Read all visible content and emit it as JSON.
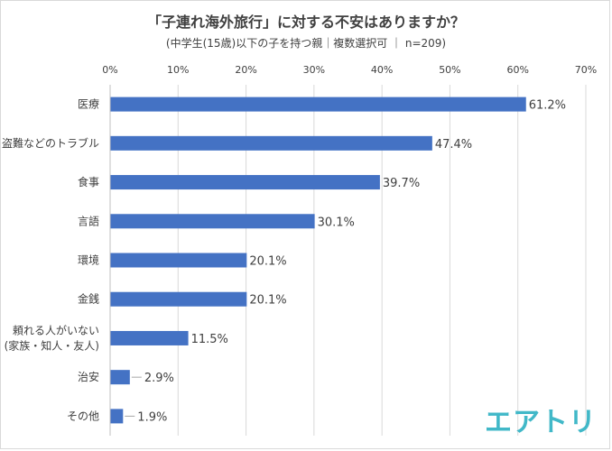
{
  "chart_data": {
    "type": "bar",
    "orientation": "horizontal",
    "title": "「子連れ海外旅行」に対する不安はありますか？",
    "subtitle": "(中学生(15歳)以下の子を持つ親｜複数選択可 ｜ n=209)",
    "categories": [
      [
        "医療"
      ],
      [
        "盗難などのトラブル"
      ],
      [
        "食事"
      ],
      [
        "言語"
      ],
      [
        "環境"
      ],
      [
        "金銭"
      ],
      [
        "頼れる人がいない",
        "(家族・知人・友人)"
      ],
      [
        "治安"
      ],
      [
        "その他"
      ]
    ],
    "values": [
      61.2,
      47.4,
      39.7,
      30.1,
      20.1,
      20.1,
      11.5,
      2.9,
      1.9
    ],
    "data_labels": [
      "61.2%",
      "47.4%",
      "39.7%",
      "30.1%",
      "20.1%",
      "20.1%",
      "11.5%",
      "2.9%",
      "1.9%"
    ],
    "x_ticks": [
      "0%",
      "10%",
      "20%",
      "30%",
      "40%",
      "50%",
      "60%",
      "70%"
    ],
    "xlim": [
      0,
      70
    ],
    "grid": true,
    "legend": "none",
    "bar_color": "#4472c4",
    "grid_color": "#d9d9d9",
    "text_color": "#404040"
  },
  "branding": {
    "logo_text": "エアトリ",
    "logo_color": "#41b8c8"
  }
}
